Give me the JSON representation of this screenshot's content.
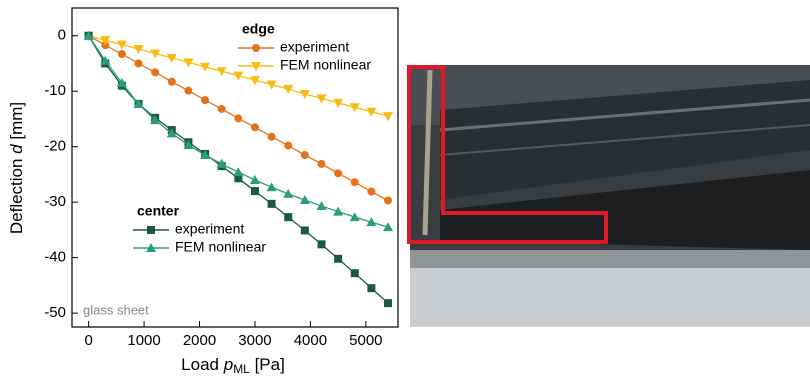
{
  "chart_data": {
    "type": "line",
    "x_label": [
      "Load ",
      "p",
      "ML",
      " [Pa]"
    ],
    "y_label": [
      "Deflection ",
      "d",
      " [mm]"
    ],
    "annotation": "glass sheet",
    "xlim": [
      -300,
      5580
    ],
    "ylim": [
      -52.5,
      5
    ],
    "xticks": [
      0,
      1000,
      2000,
      3000,
      4000,
      5000
    ],
    "yticks": [
      0,
      -10,
      -20,
      -30,
      -40,
      -50
    ],
    "x": [
      0,
      300,
      600,
      900,
      1200,
      1500,
      1800,
      2100,
      2400,
      2700,
      3000,
      3300,
      3600,
      3900,
      4200,
      4500,
      4800,
      5100,
      5400
    ],
    "legend_groups": [
      "edge",
      "center"
    ],
    "series": [
      {
        "name": "experiment",
        "group": 0,
        "color": "#e2731c",
        "marker": "circle",
        "values": [
          0,
          -1.7,
          -3.3,
          -5.0,
          -6.6,
          -8.3,
          -9.9,
          -11.6,
          -13.2,
          -14.9,
          -16.5,
          -18.2,
          -19.8,
          -21.5,
          -23.1,
          -24.8,
          -26.4,
          -28.1,
          -29.7
        ]
      },
      {
        "name": "FEM nonlinear",
        "group": 0,
        "color": "#f7bd12",
        "marker": "triangle-down",
        "values": [
          0,
          -0.8,
          -1.6,
          -2.4,
          -3.2,
          -4.0,
          -4.8,
          -5.6,
          -6.4,
          -7.2,
          -8.0,
          -8.8,
          -9.6,
          -10.5,
          -11.3,
          -12.1,
          -12.9,
          -13.7,
          -14.5
        ]
      },
      {
        "name": "experiment",
        "group": 1,
        "color": "#1b5a3c",
        "marker": "square",
        "values": [
          0,
          -5,
          -9,
          -12.3,
          -14.8,
          -17,
          -19.2,
          -21.3,
          -23.5,
          -25.7,
          -28,
          -30.3,
          -32.7,
          -35.1,
          -37.6,
          -40.2,
          -42.8,
          -45.5,
          -48.2
        ]
      },
      {
        "name": "FEM nonlinear",
        "group": 1,
        "color": "#2a9d7f",
        "marker": "triangle-up",
        "values": [
          0,
          -4.5,
          -8.5,
          -12.3,
          -15.2,
          -17.6,
          -19.7,
          -21.5,
          -23.1,
          -24.6,
          -26,
          -27.3,
          -28.5,
          -29.6,
          -30.7,
          -31.7,
          -32.7,
          -33.6,
          -34.5
        ]
      }
    ]
  }
}
